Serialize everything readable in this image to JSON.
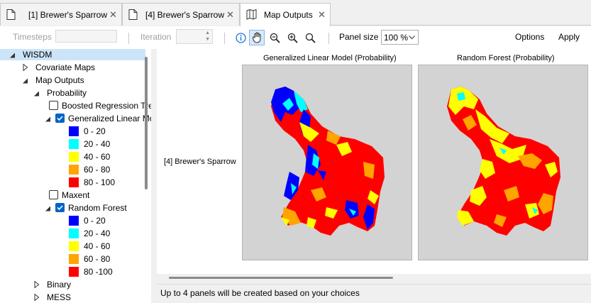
{
  "tabs": [
    {
      "label": "[1] Brewer's Sparrow",
      "icon": "document-icon",
      "active": false
    },
    {
      "label": "[4] Brewer's Sparrow",
      "icon": "document-icon",
      "active": false
    },
    {
      "label": "Map Outputs",
      "icon": "map-icon",
      "active": true
    }
  ],
  "toolbar": {
    "timesteps_label": "Timesteps",
    "iteration_label": "Iteration",
    "panel_size_label": "Panel size",
    "panel_size_value": "100 %",
    "options_label": "Options",
    "apply_label": "Apply",
    "tools": [
      "info-icon",
      "pan-hand-icon",
      "zoom-out-icon",
      "zoom-in-icon",
      "zoom-full-icon"
    ]
  },
  "tree": {
    "root": "WISDM",
    "covariate_maps": "Covariate Maps",
    "map_outputs": "Map Outputs",
    "probability": "Probability",
    "brt": "Boosted Regression Tre",
    "glm": "Generalized Linear Mo",
    "maxent": "Maxent",
    "rf": "Random Forest",
    "binary": "Binary",
    "mess": "MESS",
    "legend": [
      {
        "label": "0 - 20",
        "color": "#0000ff"
      },
      {
        "label": "20 - 40",
        "color": "#00ffff"
      },
      {
        "label": "40 - 60",
        "color": "#ffff00"
      },
      {
        "label": "60 - 80",
        "color": "#ffa500"
      },
      {
        "label": "80 - 100",
        "color": "#ff0000"
      }
    ],
    "legend_rf_last": "80 -100"
  },
  "main": {
    "row_label": "[4] Brewer's Sparrow",
    "panels": [
      {
        "title": "Generalized Linear Model (Probability)"
      },
      {
        "title": "Random Forest (Probability)"
      }
    ]
  },
  "status": "Up to 4 panels will be created based on your choices"
}
